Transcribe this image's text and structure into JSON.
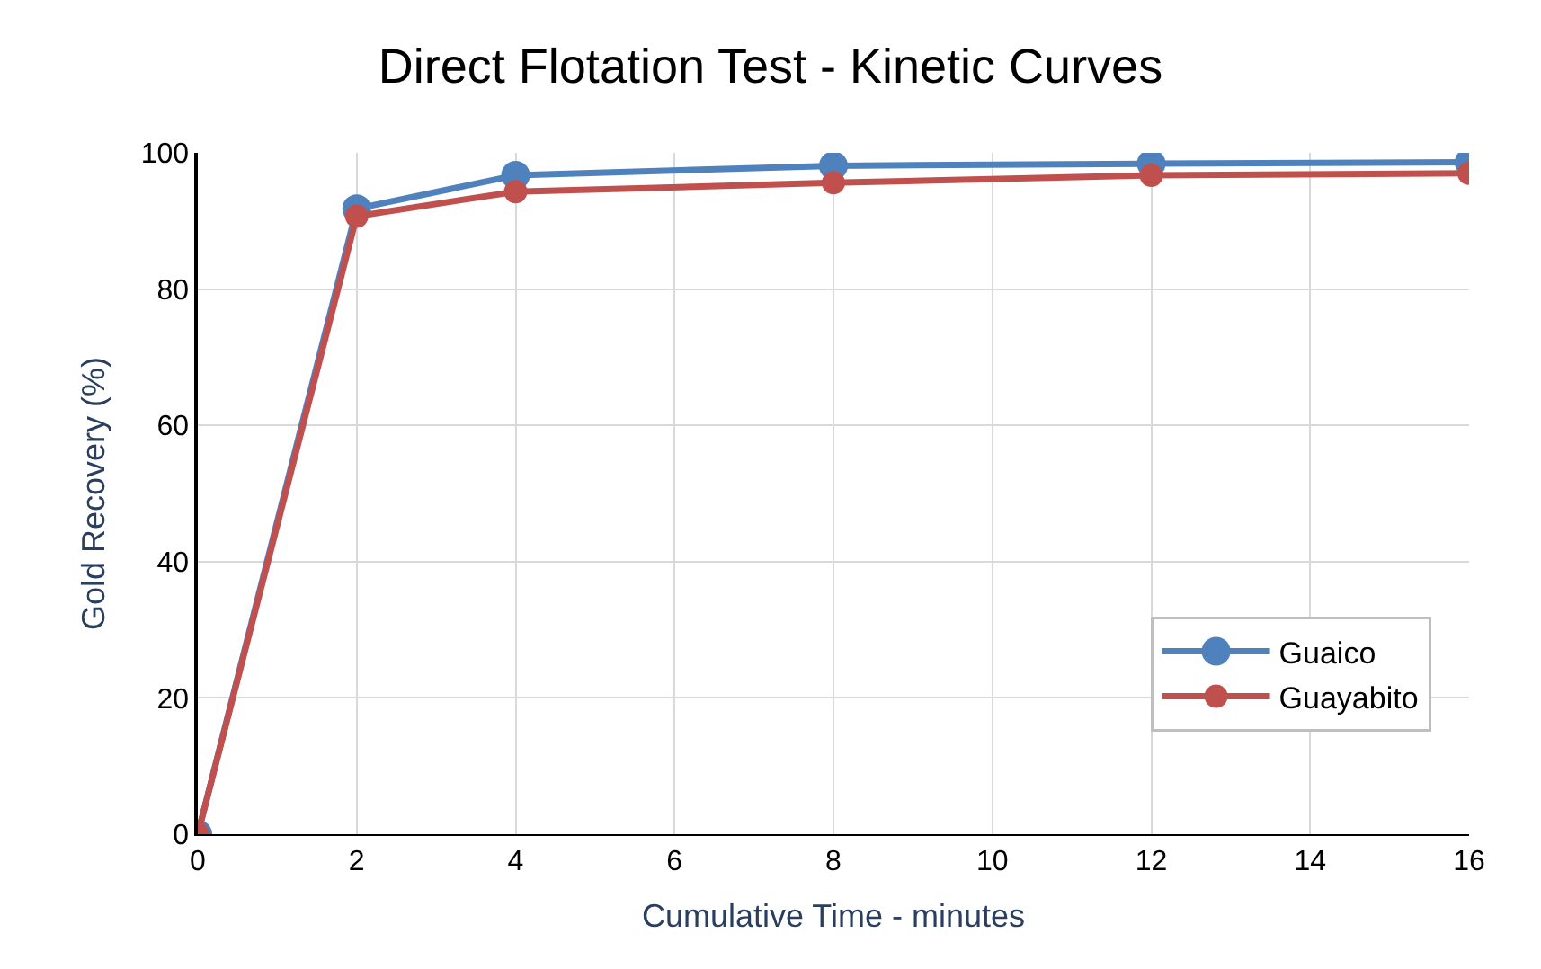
{
  "chart_data": {
    "type": "line",
    "title": "Direct Flotation Test - Kinetic Curves",
    "xlabel": "Cumulative Time - minutes",
    "ylabel": "Gold Recovery (%)",
    "x": [
      0,
      2,
      4,
      8,
      12,
      16
    ],
    "series": [
      {
        "name": "Guaico",
        "color": "#4f81bd",
        "values": [
          0,
          91.8,
          96.7,
          98.1,
          98.4,
          98.6
        ]
      },
      {
        "name": "Guayabito",
        "color": "#c0504d",
        "values": [
          0,
          90.7,
          94.3,
          95.6,
          96.7,
          97.0
        ]
      }
    ],
    "xlim": [
      0,
      16
    ],
    "xticks": [
      0,
      2,
      4,
      6,
      8,
      10,
      12,
      14,
      16
    ],
    "ylim": [
      0,
      100
    ],
    "yticks": [
      0,
      20,
      40,
      60,
      80,
      100
    ],
    "grid": true,
    "legend": "bottom right",
    "marker": "circle",
    "line_style": "solid"
  }
}
